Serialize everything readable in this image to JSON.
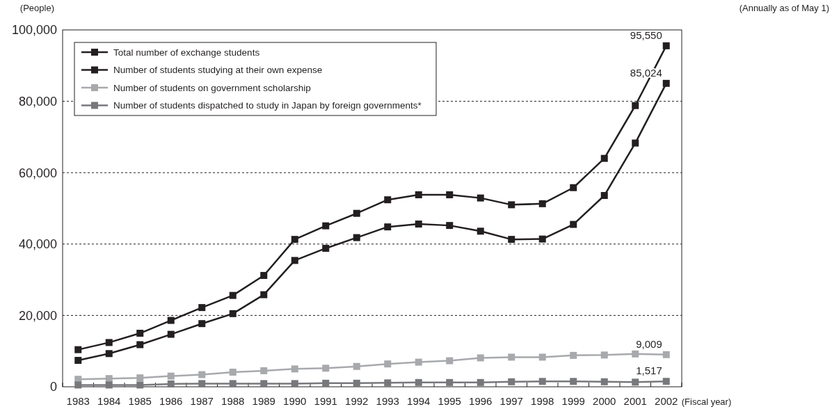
{
  "chart_data": {
    "type": "line",
    "xlabel": "(Fiscal year)",
    "ylabel": "(People)",
    "annotations": [
      "(Annually as of May 1)"
    ],
    "categories": [
      "1983",
      "1984",
      "1985",
      "1986",
      "1987",
      "1988",
      "1989",
      "1990",
      "1991",
      "1992",
      "1993",
      "1994",
      "1995",
      "1996",
      "1997",
      "1998",
      "1999",
      "2000",
      "2001",
      "2002"
    ],
    "ylim": [
      0,
      100000
    ],
    "yticks": [
      {
        "value": 0,
        "label": "0"
      },
      {
        "value": 20000,
        "label": "20,000"
      },
      {
        "value": 40000,
        "label": "40,000"
      },
      {
        "value": 60000,
        "label": "60,000"
      },
      {
        "value": 80000,
        "label": "80,000"
      },
      {
        "value": 100000,
        "label": "100,000"
      }
    ],
    "grid": "y",
    "legend": "top left",
    "marker": "square",
    "line_style": "solid",
    "series": [
      {
        "name": "Total number of exchange students",
        "color": "#231f20",
        "values": [
          10400,
          12400,
          15000,
          18600,
          22200,
          25600,
          31200,
          41300,
          45100,
          48600,
          52400,
          53800,
          53800,
          52900,
          51000,
          51300,
          55800,
          64000,
          78800,
          95550
        ],
        "value_labels": [
          null,
          null,
          null,
          null,
          null,
          null,
          null,
          null,
          null,
          null,
          null,
          null,
          null,
          null,
          null,
          null,
          null,
          null,
          null,
          "95,550"
        ]
      },
      {
        "name": "Number of students studying at their own expense",
        "color": "#231f20",
        "values": [
          7400,
          9300,
          11800,
          14700,
          17700,
          20500,
          25800,
          35400,
          38800,
          41800,
          44800,
          45600,
          45200,
          43600,
          41300,
          41400,
          45500,
          53600,
          68300,
          85024
        ],
        "value_labels": [
          null,
          null,
          null,
          null,
          null,
          null,
          null,
          null,
          null,
          null,
          null,
          null,
          null,
          null,
          null,
          null,
          null,
          null,
          null,
          "85,024"
        ]
      },
      {
        "name": "Number of students on government scholarship",
        "color": "#a7a9ac",
        "values": [
          2100,
          2300,
          2500,
          3000,
          3400,
          4100,
          4500,
          5000,
          5200,
          5700,
          6400,
          6900,
          7300,
          8100,
          8300,
          8300,
          8800,
          8900,
          9200,
          9009
        ],
        "value_labels": [
          null,
          null,
          null,
          null,
          null,
          null,
          null,
          null,
          null,
          null,
          null,
          null,
          null,
          null,
          null,
          null,
          null,
          null,
          null,
          "9,009"
        ]
      },
      {
        "name": "Number of students dispatched to study in Japan by foreign governments*",
        "color": "#77787b",
        "values": [
          500,
          500,
          500,
          800,
          900,
          900,
          900,
          900,
          1000,
          1000,
          1100,
          1200,
          1200,
          1200,
          1400,
          1500,
          1500,
          1400,
          1300,
          1517
        ],
        "value_labels": [
          null,
          null,
          null,
          null,
          null,
          null,
          null,
          null,
          null,
          null,
          null,
          null,
          null,
          null,
          null,
          null,
          null,
          null,
          null,
          "1,517"
        ]
      }
    ]
  }
}
